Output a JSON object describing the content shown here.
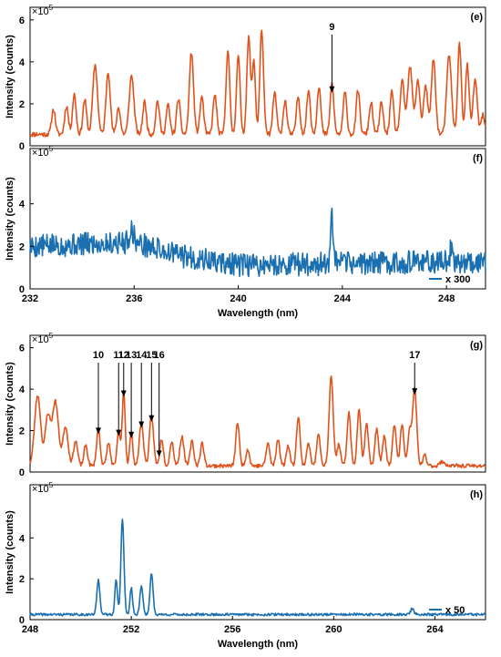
{
  "colors": {
    "orange": "#e0531e",
    "blue": "#1a6fb0",
    "axis": "#000000"
  },
  "chart_data": [
    {
      "id": "e",
      "panel_label": "(e)",
      "type": "line",
      "color": "#e0531e",
      "xlim": [
        232,
        249.5
      ],
      "ylim": [
        0,
        6.6
      ],
      "y_exponent": "×10",
      "y_exponent_power": "5",
      "ylabel": "Intensity (counts)",
      "xlabel": "",
      "yticks": [
        0,
        2,
        4,
        6
      ],
      "xticks": [],
      "baseline": 0.55,
      "noise": 0.12,
      "seed": 11,
      "peaks": [
        [
          232.9,
          1.2,
          0.07
        ],
        [
          233.4,
          1.35,
          0.07
        ],
        [
          233.7,
          1.9,
          0.07
        ],
        [
          234.1,
          1.65,
          0.07
        ],
        [
          234.5,
          3.3,
          0.09
        ],
        [
          235.0,
          3.0,
          0.08
        ],
        [
          235.4,
          1.3,
          0.07
        ],
        [
          235.9,
          2.8,
          0.09
        ],
        [
          236.4,
          1.55,
          0.07
        ],
        [
          236.9,
          1.6,
          0.07
        ],
        [
          237.3,
          1.4,
          0.07
        ],
        [
          237.7,
          1.7,
          0.07
        ],
        [
          238.2,
          3.9,
          0.08
        ],
        [
          238.6,
          1.8,
          0.07
        ],
        [
          239.1,
          1.9,
          0.07
        ],
        [
          239.6,
          4.0,
          0.07
        ],
        [
          240.0,
          3.7,
          0.07
        ],
        [
          240.4,
          4.6,
          0.07
        ],
        [
          240.6,
          3.5,
          0.06
        ],
        [
          240.9,
          5.0,
          0.07
        ],
        [
          241.4,
          2.0,
          0.07
        ],
        [
          241.8,
          1.6,
          0.07
        ],
        [
          242.3,
          1.8,
          0.07
        ],
        [
          242.7,
          2.1,
          0.07
        ],
        [
          243.1,
          2.3,
          0.07
        ],
        [
          243.6,
          2.4,
          0.07
        ],
        [
          244.1,
          2.0,
          0.07
        ],
        [
          244.6,
          2.1,
          0.07
        ],
        [
          245.1,
          1.5,
          0.07
        ],
        [
          245.5,
          1.5,
          0.07
        ],
        [
          245.9,
          2.0,
          0.07
        ],
        [
          246.3,
          2.5,
          0.08
        ],
        [
          246.6,
          3.2,
          0.09
        ],
        [
          246.9,
          2.6,
          0.08
        ],
        [
          247.2,
          2.3,
          0.08
        ],
        [
          247.5,
          3.6,
          0.08
        ],
        [
          248.1,
          3.8,
          0.09
        ],
        [
          248.5,
          4.3,
          0.07
        ],
        [
          248.8,
          3.3,
          0.07
        ],
        [
          249.1,
          2.6,
          0.08
        ],
        [
          249.4,
          0.9,
          0.07
        ]
      ],
      "annotations": [
        {
          "label": "9",
          "x": 243.6,
          "y": 2.4,
          "side": "above"
        }
      ],
      "legend": null
    },
    {
      "id": "f",
      "panel_label": "(f)",
      "type": "line",
      "color": "#1a6fb0",
      "xlim": [
        232,
        249.5
      ],
      "ylim": [
        0,
        6.6
      ],
      "y_exponent": "×10",
      "y_exponent_power": "5",
      "ylabel": "Intensity (counts)",
      "xlabel": "Wavelength (nm)",
      "yticks": [
        0,
        2,
        4
      ],
      "xticks": [
        232,
        236,
        240,
        244,
        248
      ],
      "trend": [
        [
          232,
          2.0
        ],
        [
          236,
          2.2
        ],
        [
          238,
          1.5
        ],
        [
          240,
          1.1
        ],
        [
          244,
          1.2
        ],
        [
          249.5,
          1.3
        ]
      ],
      "noise": 0.55,
      "seed": 5,
      "peaks": [
        [
          243.6,
          2.1,
          0.05
        ],
        [
          235.9,
          0.6,
          0.08
        ],
        [
          248.2,
          0.8,
          0.05
        ]
      ],
      "annotations": [],
      "legend": {
        "label": "x 300",
        "position": "bottom-right"
      }
    },
    {
      "id": "g",
      "panel_label": "(g)",
      "type": "line",
      "color": "#e0531e",
      "xlim": [
        248,
        266
      ],
      "ylim": [
        0,
        6.6
      ],
      "y_exponent": "×10",
      "y_exponent_power": "5",
      "ylabel": "Intensity (counts)",
      "xlabel": "",
      "yticks": [
        0,
        2,
        4,
        6
      ],
      "xticks": [],
      "baseline": 0.3,
      "noise": 0.09,
      "seed": 23,
      "peaks": [
        [
          248.3,
          3.4,
          0.12
        ],
        [
          248.7,
          2.4,
          0.1
        ],
        [
          249.0,
          3.1,
          0.12
        ],
        [
          249.4,
          1.9,
          0.1
        ],
        [
          249.8,
          1.2,
          0.08
        ],
        [
          250.2,
          1.0,
          0.07
        ],
        [
          250.7,
          1.8,
          0.07
        ],
        [
          251.1,
          1.1,
          0.07
        ],
        [
          251.5,
          1.7,
          0.06
        ],
        [
          251.7,
          3.6,
          0.06
        ],
        [
          252.0,
          1.6,
          0.06
        ],
        [
          252.4,
          2.1,
          0.08
        ],
        [
          252.8,
          2.4,
          0.08
        ],
        [
          253.2,
          1.3,
          0.07
        ],
        [
          253.6,
          1.2,
          0.07
        ],
        [
          254.0,
          1.4,
          0.08
        ],
        [
          254.4,
          1.2,
          0.07
        ],
        [
          254.8,
          1.1,
          0.07
        ],
        [
          256.2,
          2.1,
          0.07
        ],
        [
          256.6,
          0.8,
          0.07
        ],
        [
          257.4,
          1.1,
          0.07
        ],
        [
          257.8,
          1.3,
          0.07
        ],
        [
          258.2,
          1.0,
          0.07
        ],
        [
          258.6,
          2.4,
          0.07
        ],
        [
          259.0,
          1.1,
          0.07
        ],
        [
          259.4,
          1.6,
          0.07
        ],
        [
          259.9,
          4.3,
          0.08
        ],
        [
          260.2,
          1.0,
          0.07
        ],
        [
          260.6,
          2.6,
          0.07
        ],
        [
          261.0,
          2.8,
          0.07
        ],
        [
          261.3,
          2.1,
          0.07
        ],
        [
          261.7,
          1.8,
          0.07
        ],
        [
          262.0,
          1.4,
          0.07
        ],
        [
          262.4,
          2.0,
          0.07
        ],
        [
          262.7,
          2.0,
          0.07
        ],
        [
          263.0,
          1.7,
          0.07
        ],
        [
          263.2,
          3.7,
          0.08
        ],
        [
          263.6,
          0.5,
          0.07
        ],
        [
          264.3,
          0.2,
          0.1
        ]
      ],
      "annotations": [
        {
          "label": "10",
          "x": 250.7,
          "y": 1.7,
          "side": "above"
        },
        {
          "label": "11",
          "x": 251.5,
          "y": 1.6,
          "side": "above"
        },
        {
          "label": "12",
          "x": 251.7,
          "y": 3.5,
          "side": "above"
        },
        {
          "label": "13",
          "x": 252.0,
          "y": 1.5,
          "side": "above"
        },
        {
          "label": "14",
          "x": 252.4,
          "y": 2.0,
          "side": "above"
        },
        {
          "label": "15",
          "x": 252.8,
          "y": 2.3,
          "side": "above"
        },
        {
          "label": "16",
          "x": 253.1,
          "y": 0.6,
          "side": "above"
        },
        {
          "label": "17",
          "x": 263.2,
          "y": 3.6,
          "side": "above"
        }
      ],
      "legend": null
    },
    {
      "id": "h",
      "panel_label": "(h)",
      "type": "line",
      "color": "#1a6fb0",
      "xlim": [
        248,
        266
      ],
      "ylim": [
        0,
        6.6
      ],
      "y_exponent": "×10",
      "y_exponent_power": "5",
      "ylabel": "Intensity (counts)",
      "xlabel": "Wavelength (nm)",
      "yticks": [
        0,
        2,
        4
      ],
      "xticks": [
        248,
        252,
        256,
        260,
        264
      ],
      "baseline": 0.25,
      "noise": 0.06,
      "seed": 41,
      "peaks": [
        [
          250.7,
          1.7,
          0.06
        ],
        [
          251.4,
          1.7,
          0.05
        ],
        [
          251.65,
          4.7,
          0.06
        ],
        [
          252.0,
          1.3,
          0.05
        ],
        [
          252.4,
          1.4,
          0.06
        ],
        [
          252.8,
          2.0,
          0.06
        ],
        [
          263.1,
          0.3,
          0.06
        ]
      ],
      "annotations": [],
      "legend": {
        "label": "x 50",
        "position": "bottom-right"
      }
    }
  ]
}
